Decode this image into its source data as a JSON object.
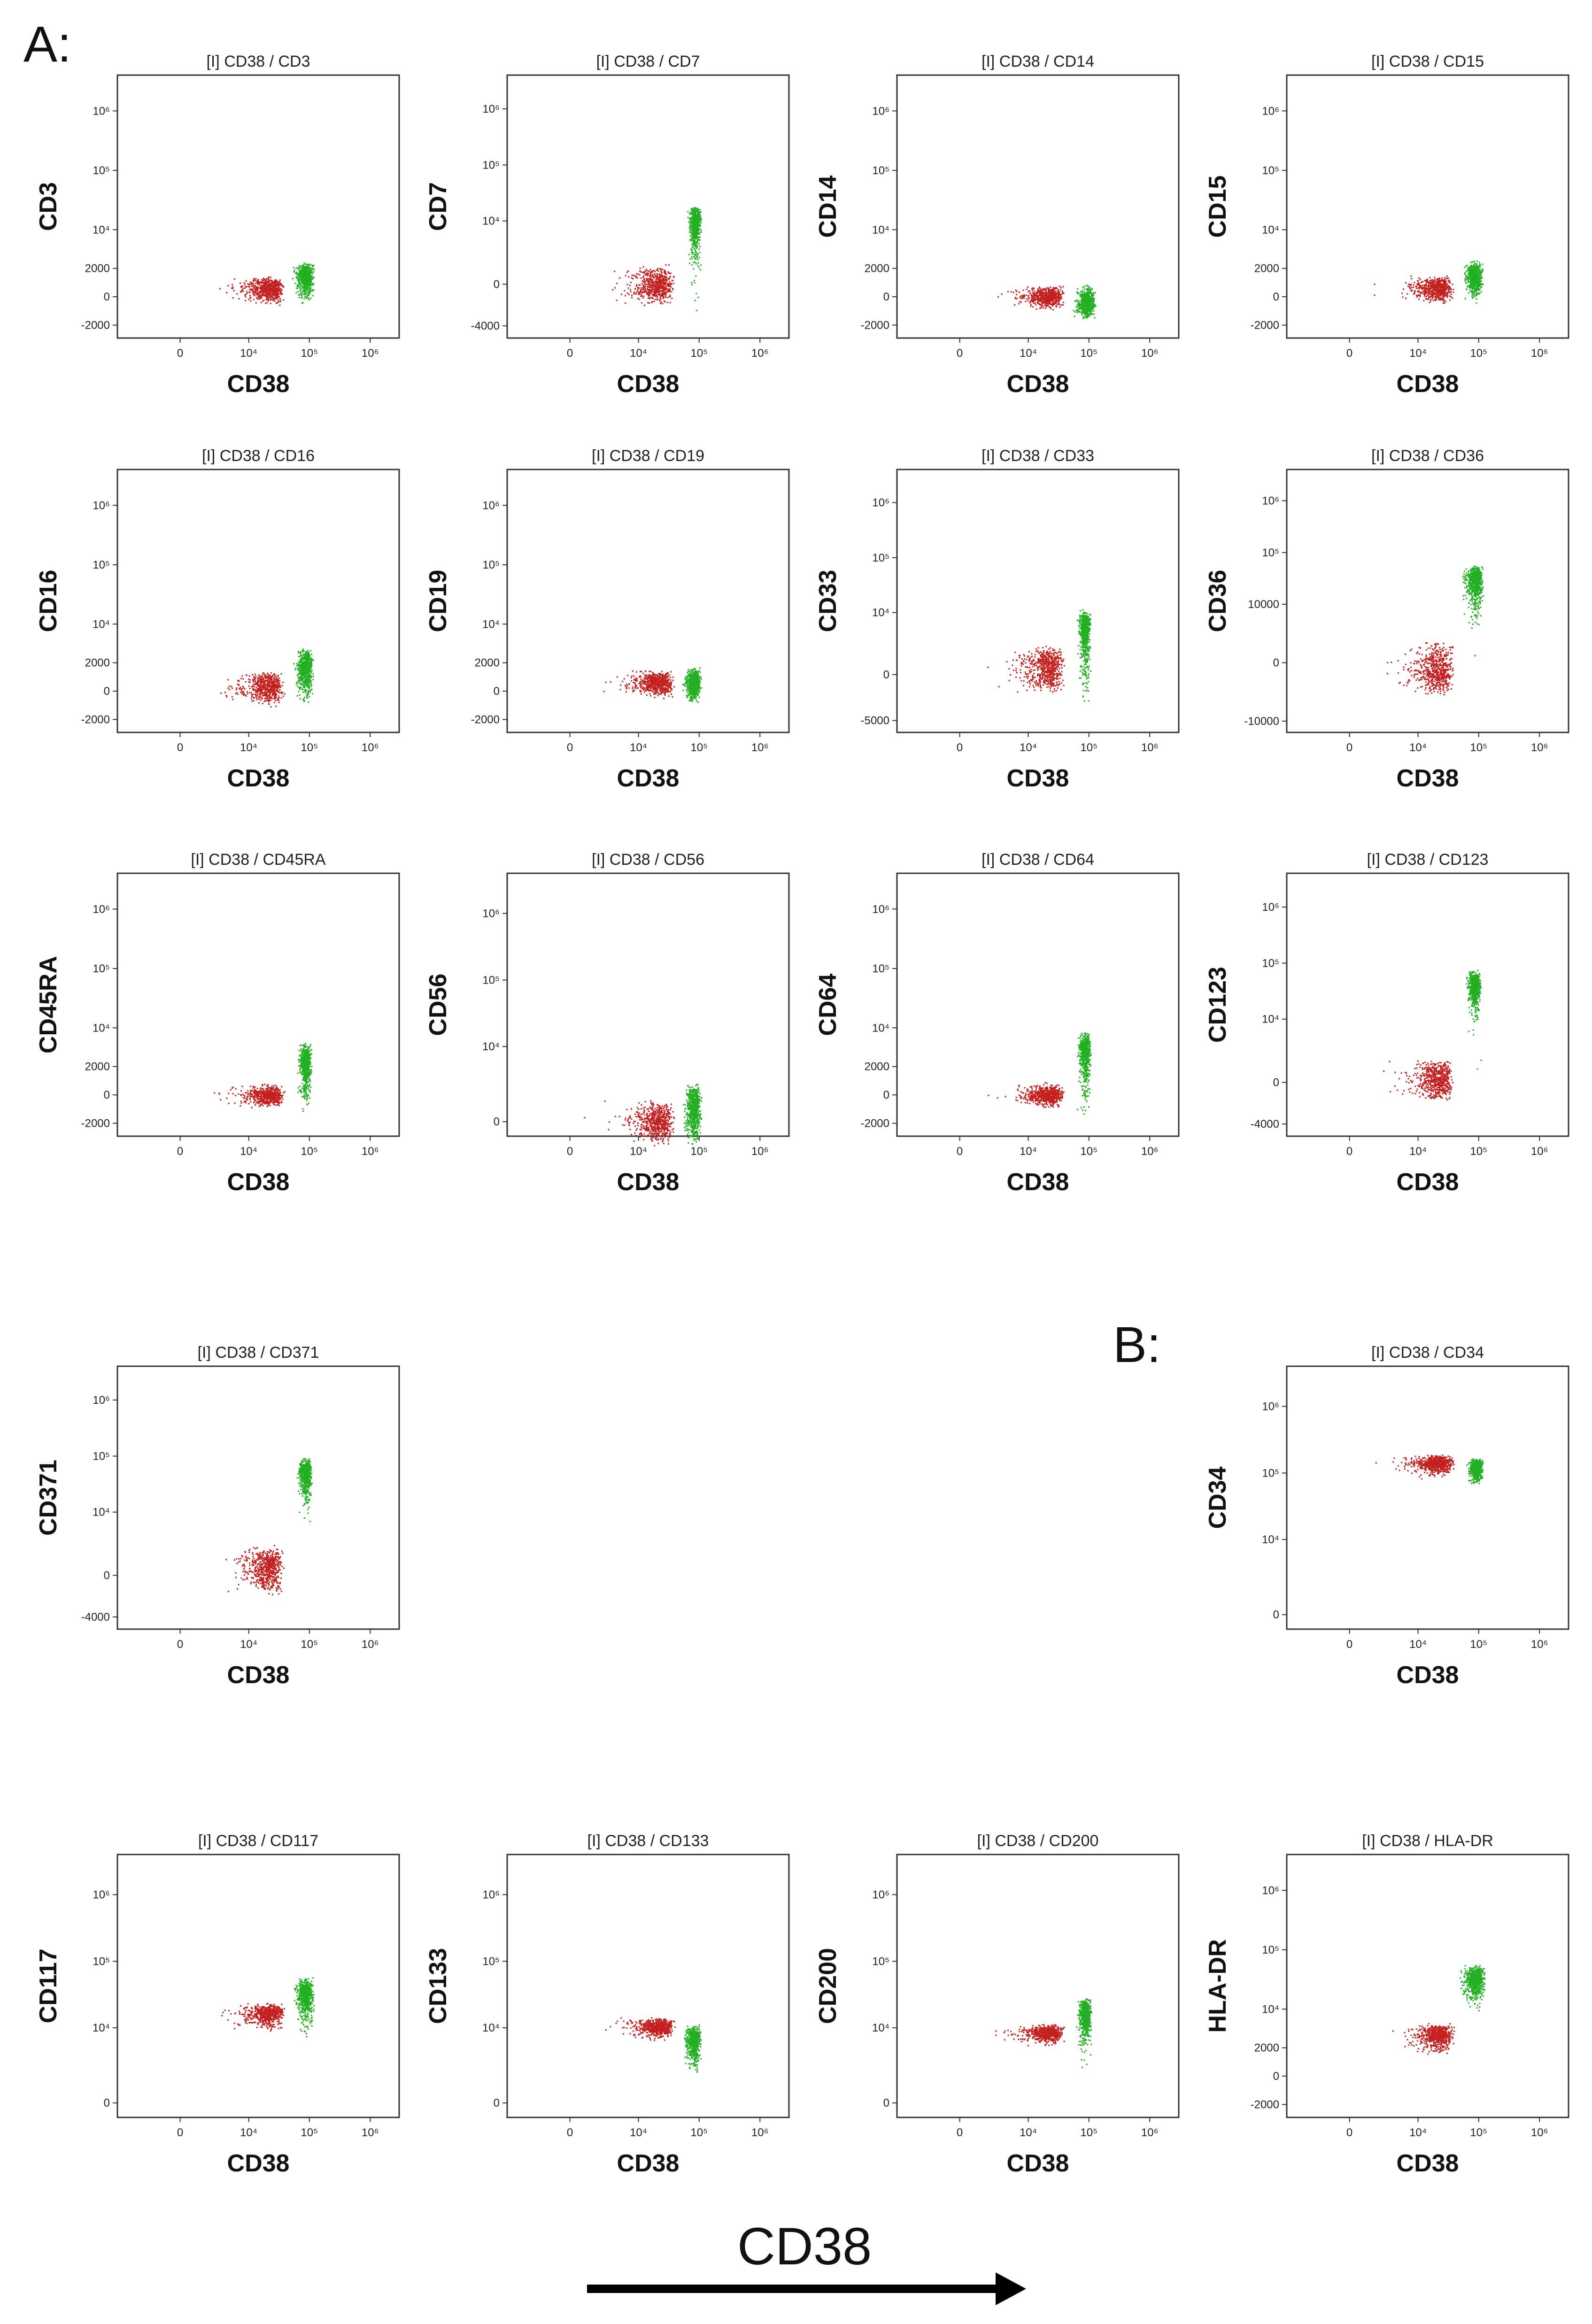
{
  "figure": {
    "panel_a_label": "A:",
    "panel_b_label": "B:",
    "arrow_label": "CD38"
  },
  "colors": {
    "red_population": "#c42020",
    "green_population": "#22b022",
    "frame": "#333333"
  },
  "chart_data": [
    {
      "id": "cd3",
      "type": "scatter",
      "title": "[I] CD38 / CD3",
      "xlabel": "CD38",
      "ylabel": "CD3",
      "xticks": [
        "0",
        "10⁴",
        "10⁵",
        "10⁶"
      ],
      "yticks": [
        "-2000",
        "0",
        "2000",
        "10⁴",
        "10⁵",
        "10⁶"
      ],
      "red": {
        "x": [
          0,
          40000
        ],
        "y": [
          -500,
          1500
        ]
      },
      "green": {
        "x": [
          50000,
          120000
        ],
        "y": [
          -500,
          3000
        ]
      }
    },
    {
      "id": "cd7",
      "type": "scatter",
      "title": "[I] CD38 / CD7",
      "xlabel": "CD38",
      "ylabel": "CD7",
      "xticks": [
        "0",
        "10⁴",
        "10⁵",
        "10⁶"
      ],
      "yticks": [
        "-4000",
        "0",
        "10⁴",
        "10⁵",
        "10⁶"
      ],
      "red": {
        "x": [
          0,
          40000
        ],
        "y": [
          -1500,
          1500
        ]
      },
      "green": {
        "x": [
          60000,
          110000
        ],
        "y": [
          -3000,
          20000
        ]
      }
    },
    {
      "id": "cd14",
      "type": "scatter",
      "title": "[I] CD38 / CD14",
      "xlabel": "CD38",
      "ylabel": "CD14",
      "xticks": [
        "0",
        "10⁴",
        "10⁵",
        "10⁶"
      ],
      "yticks": [
        "-2000",
        "0",
        "2000",
        "10⁴",
        "10⁵",
        "10⁶"
      ],
      "red": {
        "x": [
          0,
          40000
        ],
        "y": [
          -800,
          800
        ]
      },
      "green": {
        "x": [
          50000,
          130000
        ],
        "y": [
          -1500,
          800
        ]
      }
    },
    {
      "id": "cd15",
      "type": "scatter",
      "title": "[I] CD38 / CD15",
      "xlabel": "CD38",
      "ylabel": "CD15",
      "xticks": [
        "0",
        "10⁴",
        "10⁵",
        "10⁶"
      ],
      "yticks": [
        "-2000",
        "0",
        "2000",
        "10⁴",
        "10⁵",
        "10⁶"
      ],
      "red": {
        "x": [
          0,
          40000
        ],
        "y": [
          -500,
          1500
        ]
      },
      "green": {
        "x": [
          50000,
          120000
        ],
        "y": [
          -500,
          3000
        ]
      }
    },
    {
      "id": "cd16",
      "type": "scatter",
      "title": "[I] CD38 / CD16",
      "xlabel": "CD38",
      "ylabel": "CD16",
      "xticks": [
        "0",
        "10⁴",
        "10⁵",
        "10⁶"
      ],
      "yticks": [
        "-2000",
        "0",
        "2000",
        "10⁴",
        "10⁵",
        "10⁶"
      ],
      "red": {
        "x": [
          0,
          40000
        ],
        "y": [
          -1000,
          1500
        ]
      },
      "green": {
        "x": [
          50000,
          120000
        ],
        "y": [
          -1000,
          4000
        ]
      }
    },
    {
      "id": "cd19",
      "type": "scatter",
      "title": "[I] CD38 / CD19",
      "xlabel": "CD38",
      "ylabel": "CD19",
      "xticks": [
        "0",
        "10⁴",
        "10⁵",
        "10⁶"
      ],
      "yticks": [
        "-2000",
        "0",
        "2000",
        "10⁴",
        "10⁵",
        "10⁶"
      ],
      "red": {
        "x": [
          0,
          40000
        ],
        "y": [
          -500,
          1500
        ]
      },
      "green": {
        "x": [
          50000,
          110000
        ],
        "y": [
          -800,
          1800
        ]
      }
    },
    {
      "id": "cd33",
      "type": "scatter",
      "title": "[I] CD38 / CD33",
      "xlabel": "CD38",
      "ylabel": "CD33",
      "xticks": [
        "0",
        "10⁴",
        "10⁵",
        "10⁶"
      ],
      "yticks": [
        "-5000",
        "0",
        "10⁴",
        "10⁵",
        "10⁶"
      ],
      "red": {
        "x": [
          0,
          40000
        ],
        "y": [
          -1500,
          2500
        ]
      },
      "green": {
        "x": [
          60000,
          110000
        ],
        "y": [
          -3000,
          12000
        ]
      }
    },
    {
      "id": "cd36",
      "type": "scatter",
      "title": "[I] CD38 / CD36",
      "xlabel": "CD38",
      "ylabel": "CD36",
      "xticks": [
        "0",
        "10⁴",
        "10⁵",
        "10⁶"
      ],
      "yticks": [
        "-10000",
        "0",
        "10000",
        "10⁵",
        "10⁶"
      ],
      "red": {
        "x": [
          0,
          40000
        ],
        "y": [
          -3000,
          2000
        ]
      },
      "green": {
        "x": [
          50000,
          120000
        ],
        "y": [
          -4000,
          60000
        ]
      }
    },
    {
      "id": "cd45ra",
      "type": "scatter",
      "title": "[I] CD38 / CD45RA",
      "xlabel": "CD38",
      "ylabel": "CD45RA",
      "xticks": [
        "0",
        "10⁴",
        "10⁵",
        "10⁶"
      ],
      "yticks": [
        "-2000",
        "0",
        "2000",
        "10⁴",
        "10⁵",
        "10⁶"
      ],
      "red": {
        "x": [
          0,
          40000
        ],
        "y": [
          -800,
          800
        ]
      },
      "green": {
        "x": [
          60000,
          110000
        ],
        "y": [
          -1500,
          6000
        ]
      }
    },
    {
      "id": "cd56",
      "type": "scatter",
      "title": "[I] CD38 / CD56",
      "xlabel": "CD38",
      "ylabel": "CD56",
      "xticks": [
        "0",
        "10⁴",
        "10⁵",
        "10⁶"
      ],
      "yticks": [
        "0",
        "10⁴",
        "10⁵",
        "10⁶"
      ],
      "red": {
        "x": [
          0,
          40000
        ],
        "y": [
          -1500,
          1500
        ]
      },
      "green": {
        "x": [
          50000,
          110000
        ],
        "y": [
          -1500,
          3000
        ]
      }
    },
    {
      "id": "cd64",
      "type": "scatter",
      "title": "[I] CD38 / CD64",
      "xlabel": "CD38",
      "ylabel": "CD64",
      "xticks": [
        "0",
        "10⁴",
        "10⁵",
        "10⁶"
      ],
      "yticks": [
        "-2000",
        "0",
        "2000",
        "10⁴",
        "10⁵",
        "10⁶"
      ],
      "red": {
        "x": [
          0,
          40000
        ],
        "y": [
          -800,
          800
        ]
      },
      "green": {
        "x": [
          60000,
          110000
        ],
        "y": [
          -2000,
          9000
        ]
      }
    },
    {
      "id": "cd123",
      "type": "scatter",
      "title": "[I] CD38 / CD123",
      "xlabel": "CD38",
      "ylabel": "CD123",
      "xticks": [
        "0",
        "10⁴",
        "10⁵",
        "10⁶"
      ],
      "yticks": [
        "-4000",
        "0",
        "10⁴",
        "10⁵",
        "10⁶"
      ],
      "red": {
        "x": [
          0,
          40000
        ],
        "y": [
          -1500,
          2000
        ]
      },
      "green": {
        "x": [
          60000,
          110000
        ],
        "y": [
          -3000,
          80000
        ]
      }
    },
    {
      "id": "cd371",
      "type": "scatter",
      "title": "[I] CD38 / CD371",
      "xlabel": "CD38",
      "ylabel": "CD371",
      "xticks": [
        "0",
        "10⁴",
        "10⁵",
        "10⁶"
      ],
      "yticks": [
        "-4000",
        "0",
        "10⁴",
        "10⁵",
        "10⁶"
      ],
      "red": {
        "x": [
          0,
          40000
        ],
        "y": [
          -1500,
          2500
        ]
      },
      "green": {
        "x": [
          60000,
          110000
        ],
        "y": [
          -2000,
          100000
        ]
      }
    },
    {
      "id": "cd34",
      "type": "scatter",
      "title": "[I] CD38 / CD34",
      "xlabel": "CD38",
      "ylabel": "CD34",
      "xticks": [
        "0",
        "10⁴",
        "10⁵",
        "10⁶"
      ],
      "yticks": [
        "0",
        "10⁴",
        "10⁵",
        "10⁶"
      ],
      "red": {
        "x": [
          0,
          40000
        ],
        "y": [
          80000,
          200000
        ]
      },
      "green": {
        "x": [
          60000,
          120000
        ],
        "y": [
          60000,
          180000
        ]
      }
    },
    {
      "id": "cd117",
      "type": "scatter",
      "title": "[I] CD38 / CD117",
      "xlabel": "CD38",
      "ylabel": "CD117",
      "xticks": [
        "0",
        "10⁴",
        "10⁵",
        "10⁶"
      ],
      "yticks": [
        "0",
        "10⁴",
        "10⁵",
        "10⁶"
      ],
      "red": {
        "x": [
          0,
          40000
        ],
        "y": [
          8000,
          25000
        ]
      },
      "green": {
        "x": [
          50000,
          120000
        ],
        "y": [
          2000,
          60000
        ]
      }
    },
    {
      "id": "cd133",
      "type": "scatter",
      "title": "[I] CD38 / CD133",
      "xlabel": "CD38",
      "ylabel": "CD133",
      "xticks": [
        "0",
        "10⁴",
        "10⁵",
        "10⁶"
      ],
      "yticks": [
        "0",
        "10⁴",
        "10⁵",
        "10⁶"
      ],
      "red": {
        "x": [
          0,
          40000
        ],
        "y": [
          6000,
          15000
        ]
      },
      "green": {
        "x": [
          50000,
          110000
        ],
        "y": [
          500,
          12000
        ]
      }
    },
    {
      "id": "cd200",
      "type": "scatter",
      "title": "[I] CD38 / CD200",
      "xlabel": "CD38",
      "ylabel": "CD200",
      "xticks": [
        "0",
        "10⁴",
        "10⁵",
        "10⁶"
      ],
      "yticks": [
        "0",
        "10⁴",
        "10⁵",
        "10⁶"
      ],
      "red": {
        "x": [
          0,
          40000
        ],
        "y": [
          5000,
          12000
        ]
      },
      "green": {
        "x": [
          60000,
          110000
        ],
        "y": [
          500,
          30000
        ]
      }
    },
    {
      "id": "hladr",
      "type": "scatter",
      "title": "[I] CD38 / HLA-DR",
      "xlabel": "CD38",
      "ylabel": "HLA-DR",
      "xticks": [
        "0",
        "10⁴",
        "10⁵",
        "10⁶"
      ],
      "yticks": [
        "-2000",
        "0",
        "2000",
        "10⁴",
        "10⁵",
        "10⁶"
      ],
      "red": {
        "x": [
          0,
          40000
        ],
        "y": [
          1000,
          6000
        ]
      },
      "green": {
        "x": [
          40000,
          130000
        ],
        "y": [
          5000,
          60000
        ]
      }
    }
  ]
}
